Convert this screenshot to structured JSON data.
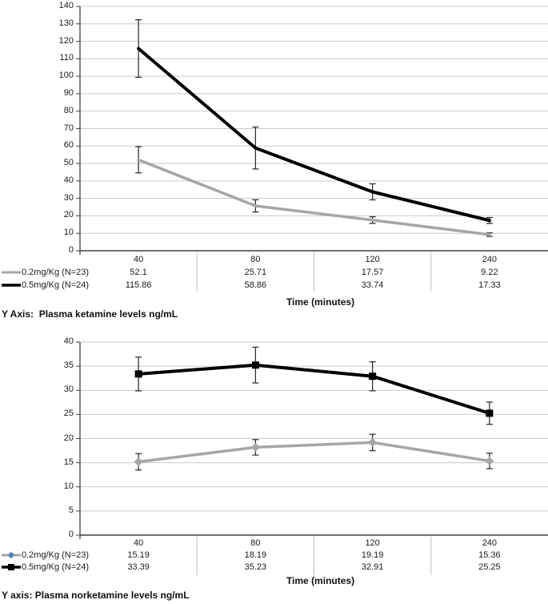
{
  "colors": {
    "gridline": "#c9c9c9",
    "axis": "#3f3f3f",
    "error_bar": "#333333",
    "separator": "#bfbfbf",
    "text": "#1a1a1a",
    "legend_diamond_blue": "#4f81bd"
  },
  "chart_data": [
    {
      "name": "Plasma ketamine levels",
      "type": "line",
      "categories": [
        "40",
        "80",
        "120",
        "240"
      ],
      "series": [
        {
          "name": "0.2mg/Kg (N=23)",
          "color": "#a6a6a6",
          "marker": "none",
          "legend_marker": "line",
          "values": [
            52.1,
            25.71,
            17.57,
            9.22
          ],
          "errors": [
            7.5,
            3.5,
            1.9,
            1.0
          ]
        },
        {
          "name": "0.5mg/Kg (N=24)",
          "color": "#000000",
          "marker": "none",
          "legend_marker": "line",
          "values": [
            115.86,
            58.86,
            33.74,
            17.33
          ],
          "errors": [
            16.5,
            12.0,
            4.6,
            1.7
          ]
        }
      ],
      "ylim": [
        0,
        140
      ],
      "ytick_step": 10,
      "grid": true,
      "error_bars": true,
      "legend_position": "left-of-table",
      "xlabel": "Time (minutes)",
      "axis_caption": "Y Axis:  Plasma ketamine levels ng/mL"
    },
    {
      "name": "Plasma norketamine levels",
      "type": "line",
      "categories": [
        "40",
        "80",
        "120",
        "240"
      ],
      "series": [
        {
          "name": "0.2mg/Kg (N=23)",
          "color": "#a6a6a6",
          "marker": "diamond",
          "marker_color": "#a6a6a6",
          "legend_marker": "diamond",
          "legend_marker_color": "#4f81bd",
          "values": [
            15.19,
            18.19,
            19.19,
            15.36
          ],
          "errors": [
            1.7,
            1.6,
            1.7,
            1.6
          ]
        },
        {
          "name": "0.5mg/Kg (N=24)",
          "color": "#000000",
          "marker": "square",
          "marker_color": "#000000",
          "legend_marker": "square",
          "legend_marker_color": "#000000",
          "values": [
            33.39,
            35.23,
            32.91,
            25.25
          ],
          "errors": [
            3.5,
            3.7,
            3.0,
            2.3
          ]
        }
      ],
      "ylim": [
        0,
        40
      ],
      "ytick_step": 5,
      "grid": true,
      "error_bars": true,
      "legend_position": "left-of-table",
      "xlabel": "Time (minutes)",
      "axis_caption": "Y axis: Plasma norketamine levels ng/mL"
    }
  ]
}
